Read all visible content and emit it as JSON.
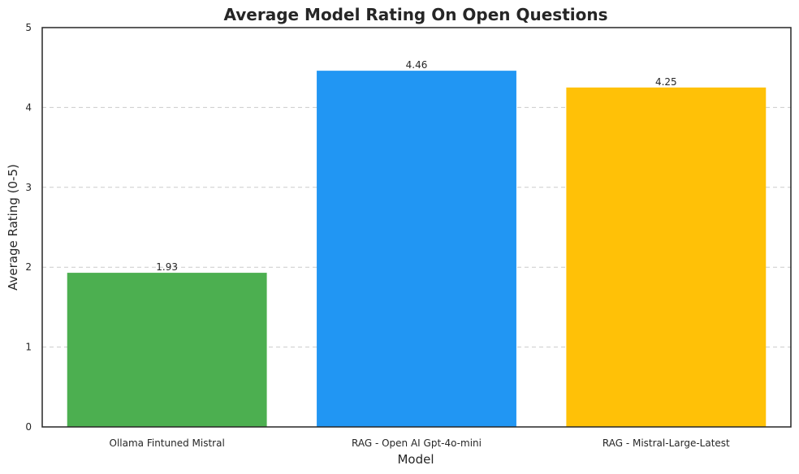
{
  "chart_data": {
    "type": "bar",
    "title": "Average Model Rating On Open Questions",
    "xlabel": "Model",
    "ylabel": "Average Rating (0-5)",
    "categories": [
      "Ollama Fintuned Mistral",
      "RAG - Open AI Gpt-4o-mini",
      "RAG - Mistral-Large-Latest"
    ],
    "values": [
      1.93,
      4.46,
      4.25
    ],
    "value_labels": [
      "1.93",
      "4.46",
      "4.25"
    ],
    "colors": [
      "#4caf50",
      "#2196f3",
      "#ffc107"
    ],
    "ylim": [
      0,
      5
    ],
    "yticks": [
      0,
      1,
      2,
      3,
      4,
      5
    ],
    "grid": "y-dashed",
    "legend": "none"
  }
}
